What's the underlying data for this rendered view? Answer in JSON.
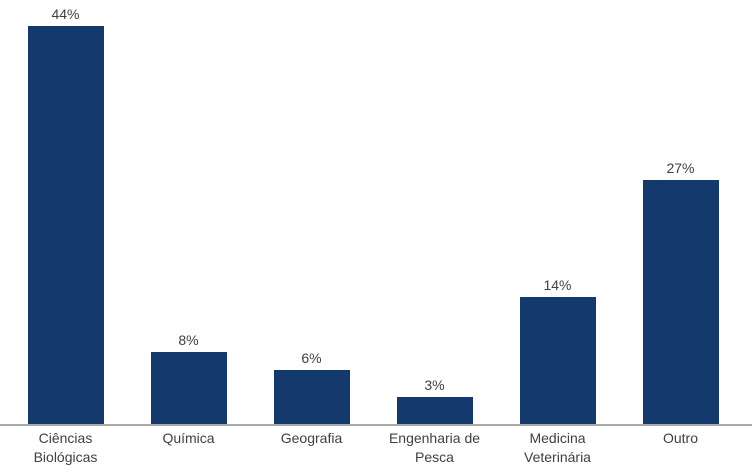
{
  "chart_data": {
    "type": "bar",
    "title": "",
    "xlabel": "",
    "ylabel": "",
    "categories": [
      "Ciências Biológicas",
      "Química",
      "Geografia",
      "Engenharia de Pesca",
      "Medicina Veterinária",
      "Outro"
    ],
    "values": [
      44,
      8,
      6,
      3,
      14,
      27
    ],
    "value_labels": [
      "44%",
      "8%",
      "6%",
      "3%",
      "14%",
      "27%"
    ],
    "ylim": [
      0,
      47
    ],
    "grid": false,
    "legend": false,
    "bar_color": "#143A6D",
    "axis_line_color": "#A9A9A9",
    "label_color": "#404040"
  }
}
